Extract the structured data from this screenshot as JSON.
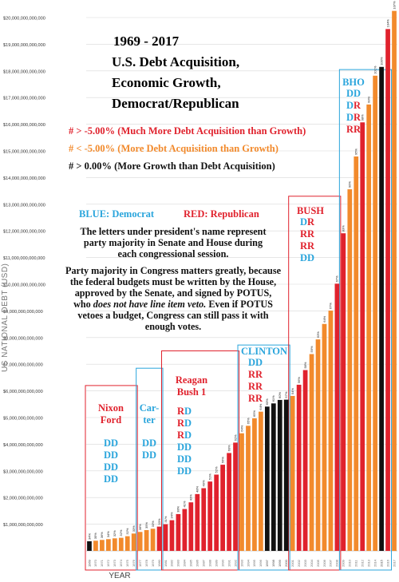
{
  "title": {
    "years": "1969 - 2017",
    "line1": "U.S. Debt Acquisition,",
    "line2": "Economic Growth,",
    "line3": "Democrat/Republican"
  },
  "key": {
    "red": "# > -5.00% (Much More Debt Acquisition than Growth)",
    "orange": "# < -5.00% (More Debt Acquisition than Growth)",
    "black": "# > 0.00% (More Growth than Debt Acquisition)"
  },
  "party_legend": {
    "blue": "BLUE: Democrat",
    "red": "RED: Republican"
  },
  "notes": {
    "letters": "The letters under president's name represent party majority in Senate and House during each congressional session.",
    "budget_before": "Party majority in Congress matters greatly, because the federal budgets must be written by the House, approved by the Senate, and signed by POTUS, who ",
    "budget_em": "does not have line item veto.",
    "budget_after": " Even if POTUS vetoes a budget, Congress can still pass it with enough votes."
  },
  "eras": [
    {
      "name": "Nixon Ford",
      "lines": [
        "Nixon",
        "Ford"
      ],
      "party_color": "#e0222d",
      "sessions": [
        "DD",
        "DD",
        "DD",
        "DD"
      ]
    },
    {
      "name": "Carter",
      "lines": [
        "Car-",
        "ter"
      ],
      "party_color": "#2aa5dc",
      "sessions": [
        "DD",
        "DD"
      ]
    },
    {
      "name": "Reagan Bush 1",
      "lines": [
        "Reagan",
        "Bush 1"
      ],
      "party_color": "#e0222d",
      "sessions": [
        "RD",
        "RD",
        "RD",
        "DD",
        "DD",
        "DD"
      ]
    },
    {
      "name": "CLINTON",
      "lines": [
        "CLINTON"
      ],
      "party_color": "#2aa5dc",
      "sessions": [
        "DD",
        "RR",
        "RR",
        "RR"
      ]
    },
    {
      "name": "BUSH",
      "lines": [
        "BUSH"
      ],
      "party_color": "#e0222d",
      "sessions": [
        "DR",
        "RR",
        "RR",
        "DD"
      ]
    },
    {
      "name": "BHO",
      "lines": [
        "BHO"
      ],
      "party_color": "#2aa5dc",
      "sessions": [
        "DD",
        "DR",
        "DR",
        "RR"
      ]
    }
  ],
  "colors": {
    "red": "#e0222d",
    "orange": "#f28a2c",
    "black": "#111111",
    "democrat": "#2aa5dc",
    "republican": "#e0222d"
  },
  "chart_data": {
    "type": "bar",
    "xlabel": "Year",
    "ylabel": "US National Debt (USD)",
    "ylim": [
      0,
      20000000000000
    ],
    "y_ticks": [
      1000000000000,
      2000000000000,
      3000000000000,
      4000000000000,
      5000000000000,
      6000000000000,
      7000000000000,
      8000000000000,
      9000000000000,
      10000000000000,
      11000000000000,
      12000000000000,
      13000000000000,
      14000000000000,
      15000000000000,
      16000000000000,
      17000000000000,
      18000000000000,
      19000000000000,
      20000000000000
    ],
    "y_tick_labels": [
      "$1,000,000,000,000",
      "$2,000,000,000,000",
      "$3,000,000,000,000",
      "$4,000,000,000,000",
      "$5,000,000,000,000",
      "$6,000,000,000,000",
      "$7,000,000,000,000",
      "$8,000,000,000,000",
      "$9,000,000,000,000",
      "$10,000,000,000,000",
      "$11,000,000,000,000",
      "$12,000,000,000,000",
      "$13,000,000,000,000",
      "$14,000,000,000,000",
      "$15,000,000,000,000",
      "$16,000,000,000,000",
      "$17,000,000,000,000",
      "$18,000,000,000,000",
      "$19,000,000,000,000",
      "$20,000,000,000,000"
    ],
    "grid": true,
    "categories": [
      "1969",
      "1970",
      "1971",
      "1972",
      "1973",
      "1974",
      "1975",
      "1976",
      "1977",
      "1978",
      "1979",
      "1980",
      "1981",
      "1982",
      "1983",
      "1984",
      "1985",
      "1986",
      "1987",
      "1988",
      "1989",
      "1990",
      "1991",
      "1992",
      "1993",
      "1994",
      "1995",
      "1996",
      "1997",
      "1998",
      "1999",
      "2000",
      "2001",
      "2002",
      "2003",
      "2004",
      "2005",
      "2006",
      "2007",
      "2008",
      "2009",
      "2010",
      "2011",
      "2012",
      "2013",
      "2014",
      "2015",
      "2016",
      "2017"
    ],
    "values": [
      360000000000,
      380000000000,
      410000000000,
      440000000000,
      470000000000,
      490000000000,
      550000000000,
      650000000000,
      710000000000,
      780000000000,
      830000000000,
      910000000000,
      1000000000000,
      1150000000000,
      1380000000000,
      1570000000000,
      1820000000000,
      2130000000000,
      2350000000000,
      2600000000000,
      2860000000000,
      3230000000000,
      3670000000000,
      4060000000000,
      4410000000000,
      4690000000000,
      4970000000000,
      5220000000000,
      5410000000000,
      5530000000000,
      5660000000000,
      5670000000000,
      5810000000000,
      6230000000000,
      6780000000000,
      7380000000000,
      7930000000000,
      8510000000000,
      9010000000000,
      10020000000000,
      11910000000000,
      13560000000000,
      14790000000000,
      16070000000000,
      16740000000000,
      17820000000000,
      18150000000000,
      19570000000000,
      20250000000000
    ],
    "bar_class": [
      "black",
      "orange",
      "orange",
      "orange",
      "orange",
      "orange",
      "orange",
      "orange",
      "orange",
      "orange",
      "orange",
      "red",
      "red",
      "red",
      "red",
      "red",
      "red",
      "red",
      "red",
      "red",
      "red",
      "red",
      "red",
      "red",
      "orange",
      "orange",
      "orange",
      "orange",
      "black",
      "black",
      "black",
      "black",
      "orange",
      "red",
      "red",
      "orange",
      "orange",
      "orange",
      "orange",
      "red",
      "red",
      "orange",
      "orange",
      "red",
      "orange",
      "orange",
      "black",
      "red",
      "orange"
    ],
    "bar_labels": [
      "34%",
      "35%",
      "36%",
      "34%",
      "32%",
      "32%",
      "32%",
      "33%",
      "36%",
      "35%",
      "33%",
      "33%",
      "31%",
      "34%",
      "38%",
      "41%",
      "43%",
      "48%",
      "49%",
      "51%",
      "52%",
      "56%",
      "60%",
      "62%",
      "64%",
      "65%",
      "65%",
      "64%",
      "63%",
      "61%",
      "60%",
      "57%",
      "54%",
      "56%",
      "58%",
      "59%",
      "63%",
      "64%",
      "67%",
      "67%",
      "83%",
      "90%",
      "95%",
      "98%",
      "99%",
      "101%",
      "100%",
      "104%",
      "107%"
    ]
  }
}
